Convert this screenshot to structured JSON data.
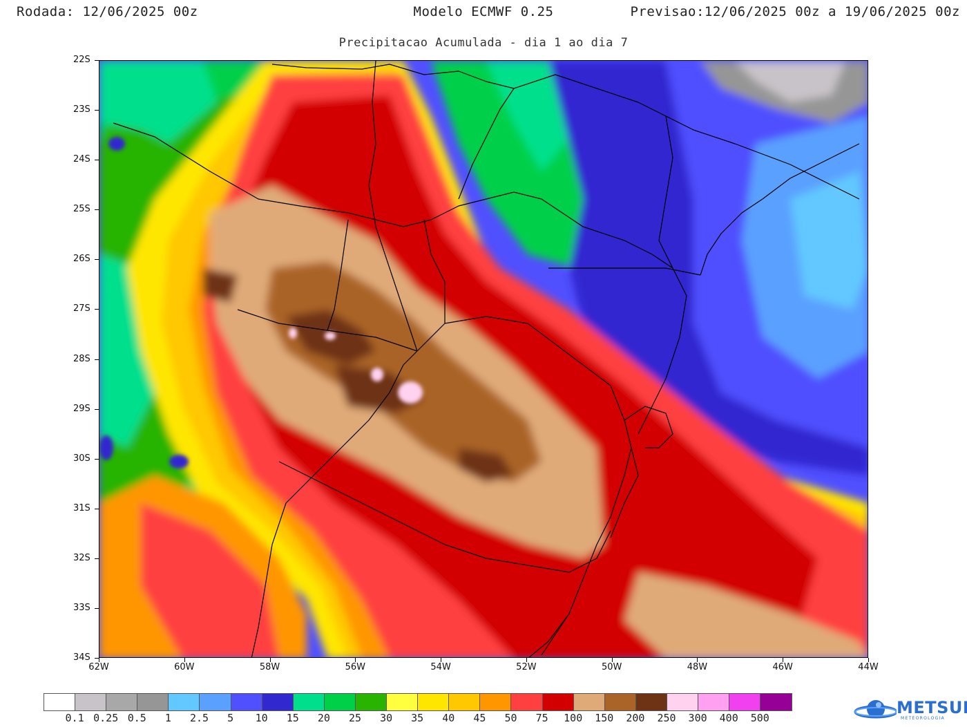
{
  "header": {
    "run_label": "Rodada: 12/06/2025 00z",
    "model_label": "Modelo ECMWF 0.25",
    "forecast_label": "Previsao:12/06/2025 00z a 19/06/2025 00z"
  },
  "subtitle": "Precipitacao Acumulada - dia 1 ao dia 7",
  "map": {
    "lat_labels": [
      "22S",
      "23S",
      "24S",
      "25S",
      "26S",
      "27S",
      "28S",
      "29S",
      "30S",
      "31S",
      "32S",
      "33S",
      "34S"
    ],
    "lon_labels": [
      "62W",
      "60W",
      "58W",
      "56W",
      "54W",
      "52W",
      "50W",
      "48W",
      "46W",
      "44W"
    ],
    "lat_range": [
      -34,
      -22
    ],
    "lon_range": [
      -62,
      -44
    ]
  },
  "legend": {
    "colors": [
      "#ffffff",
      "#c8c3c8",
      "#a8a8a8",
      "#969696",
      "#62c8ff",
      "#5aa0ff",
      "#5050ff",
      "#3228d0",
      "#00e08c",
      "#00d048",
      "#28b400",
      "#ffff40",
      "#ffe600",
      "#ffc800",
      "#ff9600",
      "#ff4040",
      "#d20000",
      "#e0aa78",
      "#aa6428",
      "#6e3214",
      "#ffd2f0",
      "#ffa0f0",
      "#f040f0",
      "#960096"
    ],
    "labels": [
      "0.1",
      "0.25",
      "0.5",
      "1",
      "2.5",
      "5",
      "10",
      "15",
      "20",
      "25",
      "30",
      "35",
      "40",
      "45",
      "50",
      "75",
      "100",
      "150",
      "200",
      "250",
      "300",
      "400",
      "500"
    ]
  },
  "logo": {
    "name": "METSUL",
    "tagline": "METEOROLOGIA"
  }
}
